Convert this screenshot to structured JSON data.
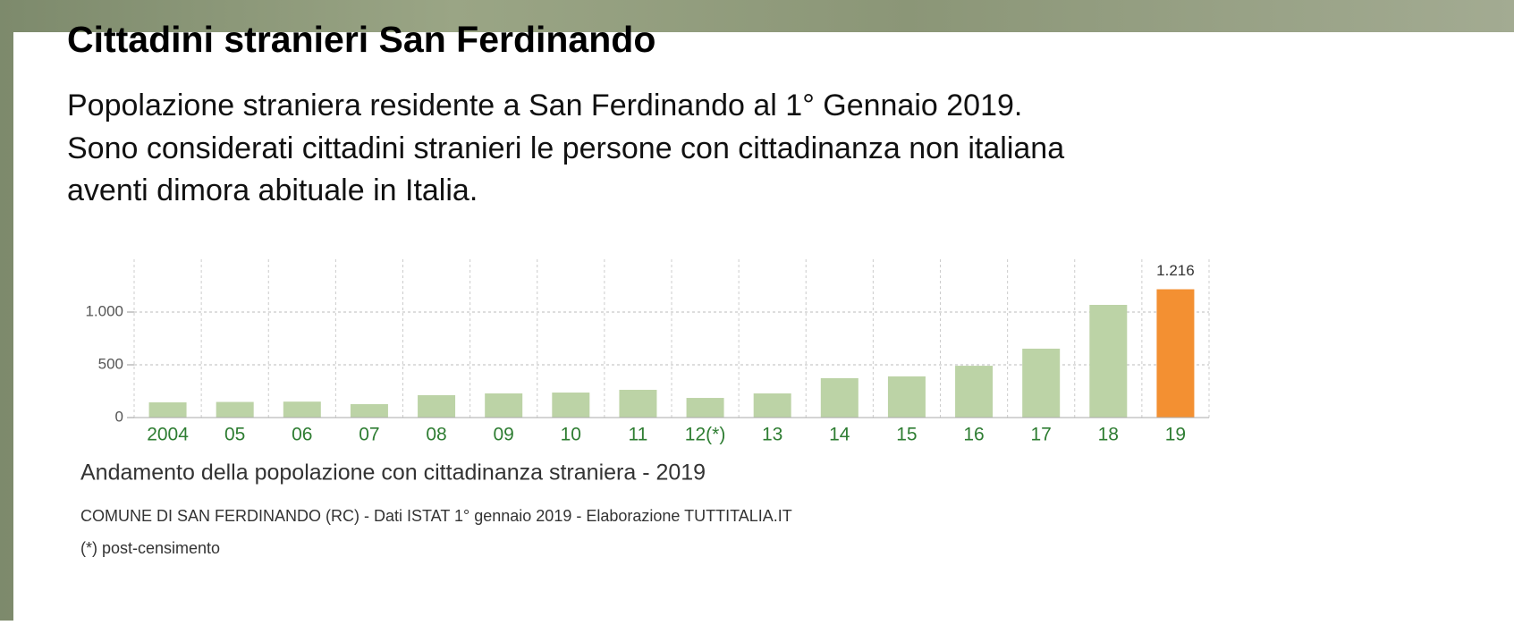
{
  "header": {
    "title": "Cittadini stranieri San Ferdinando",
    "lines": [
      "Popolazione straniera residente a San Ferdinando al 1° Gennaio 2019.",
      "Sono considerati cittadini stranieri le persone con cittadinanza non italiana",
      "aventi dimora abituale in Italia."
    ]
  },
  "chart_data": {
    "type": "bar",
    "categories": [
      "2004",
      "05",
      "06",
      "07",
      "08",
      "09",
      "10",
      "11",
      "12(*)",
      "13",
      "14",
      "15",
      "16",
      "17",
      "18",
      "19"
    ],
    "values": [
      144,
      148,
      151,
      127,
      212,
      229,
      237,
      263,
      186,
      229,
      373,
      390,
      491,
      653,
      1068,
      1216
    ],
    "value_labels": [
      null,
      null,
      null,
      null,
      null,
      null,
      null,
      null,
      null,
      null,
      null,
      null,
      null,
      null,
      null,
      "1.216"
    ],
    "colors": [
      "#bcd3a6",
      "#bcd3a6",
      "#bcd3a6",
      "#bcd3a6",
      "#bcd3a6",
      "#bcd3a6",
      "#bcd3a6",
      "#bcd3a6",
      "#bcd3a6",
      "#bcd3a6",
      "#bcd3a6",
      "#bcd3a6",
      "#bcd3a6",
      "#bcd3a6",
      "#bcd3a6",
      "#f39032"
    ],
    "ylim": [
      0,
      1500
    ],
    "yticks": [
      0,
      500,
      {
        "value": 1000,
        "label": "1.000"
      }
    ],
    "grid": true,
    "caption": "Andamento della popolazione con cittadinanza straniera - 2019",
    "source": "COMUNE DI SAN FERDINANDO (RC) - Dati ISTAT 1° gennaio 2019 - Elaborazione TUTTITALIA.IT",
    "note": "(*) post-censimento"
  }
}
